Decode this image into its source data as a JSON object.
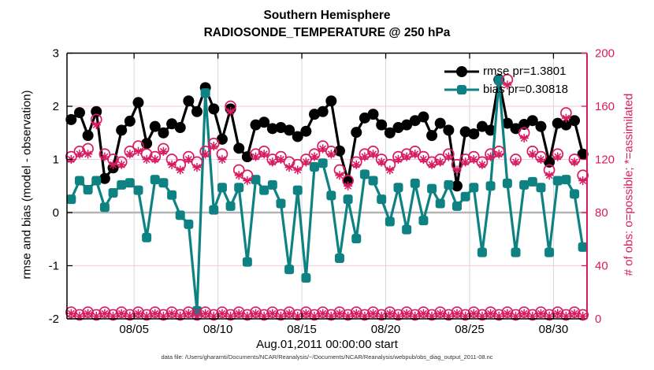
{
  "figure": {
    "title_line1": "Southern Hemisphere",
    "title_line2": "RADIOSONDE_TEMPERATURE @ 250 hPa",
    "xlabel": "Aug.01,2011 00:00:00 start",
    "ylabel_left": "rmse and bias (model - observation)",
    "ylabel_right": "# of obs: o=possible; *=assimilated",
    "caption": "data file: /Users/gharamti/Documents/NCAR/Reanalysis/~/Documents/NCAR/Reanalysis/webpub/obs_diag_output_2011-08.nc",
    "legend": [
      {
        "label": "rmse pr=1.3801",
        "color": "#000000",
        "marker": "filled-circle"
      },
      {
        "label": "bias pr=0.30818",
        "color": "#0e8282",
        "marker": "filled-square"
      }
    ]
  },
  "chart_data": {
    "type": "line",
    "title": "Southern Hemisphere — RADIOSONDE_TEMPERATURE @ 250 hPa",
    "xlabel": "Aug.01,2011 00:00:00 start",
    "ylabel_left": "rmse and bias (model - observation)",
    "ylabel_right": "# of obs: o=possible; *=assimilated",
    "x_tick_labels": [
      "08/05",
      "08/10",
      "08/15",
      "08/20",
      "08/25",
      "08/30"
    ],
    "x_tick_days": [
      4,
      9,
      14,
      19,
      24,
      29
    ],
    "x_span_days": 31,
    "n_points": 62,
    "time_sampling": "12-hourly, Aug 1 to Sep 1 2011",
    "y_left": {
      "min": -2,
      "max": 3,
      "ticks": [
        3,
        2,
        1,
        0,
        -1,
        -2
      ]
    },
    "y_right": {
      "min": 0,
      "max": 200,
      "ticks": [
        200,
        160,
        120,
        80,
        40,
        0
      ],
      "color": "#d81b60"
    },
    "grid": {
      "vertical_color": "#d8d8d8",
      "horizontal_color": "#f4d3e0",
      "zero_line_color": "#b5b5b5"
    },
    "series": [
      {
        "name": "rmse",
        "axis": "left",
        "color": "#000000",
        "marker": "filled-circle",
        "line": true,
        "values": [
          1.75,
          1.88,
          1.45,
          1.9,
          0.64,
          0.84,
          1.55,
          1.72,
          2.07,
          1.3,
          1.62,
          1.5,
          1.67,
          1.6,
          2.1,
          1.9,
          2.35,
          1.95,
          1.38,
          1.95,
          1.21,
          1.05,
          1.65,
          1.7,
          1.58,
          1.6,
          1.55,
          1.43,
          1.53,
          1.85,
          1.9,
          2.1,
          1.16,
          0.6,
          1.51,
          1.78,
          1.85,
          1.65,
          1.5,
          1.6,
          1.65,
          1.73,
          1.8,
          1.45,
          1.68,
          1.55,
          0.5,
          1.52,
          1.48,
          1.62,
          1.55,
          2.5,
          1.68,
          1.58,
          1.66,
          1.73,
          1.62,
          0.95,
          1.68,
          1.65,
          1.73,
          1.1
        ]
      },
      {
        "name": "bias",
        "axis": "left",
        "color": "#0e8282",
        "marker": "filled-square",
        "line": true,
        "values": [
          0.25,
          0.6,
          0.43,
          0.6,
          0.1,
          0.37,
          0.52,
          0.56,
          0.42,
          -0.47,
          0.62,
          0.56,
          0.33,
          -0.05,
          -0.22,
          -1.85,
          2.25,
          0.05,
          0.47,
          0.12,
          0.47,
          -0.93,
          0.62,
          0.42,
          0.52,
          0.17,
          -1.07,
          0.42,
          -1.23,
          0.86,
          0.93,
          0.32,
          -0.86,
          0.25,
          -0.49,
          0.72,
          0.6,
          0.25,
          -0.17,
          0.47,
          -0.32,
          0.55,
          -0.15,
          0.45,
          0.17,
          0.52,
          0.12,
          0.3,
          0.47,
          -0.75,
          0.5,
          2.49,
          0.55,
          -0.75,
          0.52,
          0.58,
          0.47,
          -0.75,
          0.6,
          0.62,
          0.35,
          -0.65
        ]
      },
      {
        "name": "obs possible",
        "axis": "right",
        "color": "#d81b60",
        "marker": "open-circle",
        "line": false,
        "values": [
          122,
          126,
          128,
          150,
          124,
          120,
          118,
          126,
          130,
          124,
          122,
          128,
          120,
          116,
          122,
          118,
          126,
          132,
          124,
          160,
          112,
          108,
          124,
          126,
          120,
          122,
          118,
          116,
          120,
          124,
          130,
          126,
          112,
          104,
          118,
          124,
          126,
          120,
          116,
          122,
          124,
          126,
          122,
          118,
          120,
          124,
          116,
          120,
          122,
          118,
          124,
          126,
          180,
          120,
          140,
          126,
          122,
          112,
          124,
          155,
          120,
          108
        ]
      },
      {
        "name": "obs assimilated",
        "axis": "right",
        "color": "#d81b60",
        "marker": "asterisk",
        "line": false,
        "values": [
          120,
          124,
          124,
          146,
          122,
          116,
          116,
          124,
          126,
          120,
          120,
          126,
          116,
          112,
          120,
          114,
          124,
          130,
          120,
          156,
          108,
          104,
          122,
          124,
          118,
          120,
          114,
          112,
          118,
          122,
          128,
          124,
          108,
          100,
          116,
          122,
          124,
          118,
          112,
          120,
          122,
          124,
          120,
          116,
          118,
          122,
          112,
          118,
          120,
          116,
          122,
          124,
          176,
          118,
          136,
          124,
          120,
          108,
          122,
          151,
          118,
          104
        ]
      },
      {
        "name": "obs possible (bottom row)",
        "axis": "right",
        "color": "#d81b60",
        "marker": "open-circle",
        "line": false,
        "values": [
          5,
          3,
          5,
          3,
          5,
          3,
          5,
          3,
          5,
          3,
          5,
          3,
          5,
          3,
          5,
          3,
          5,
          3,
          5,
          3,
          5,
          3,
          5,
          3,
          5,
          3,
          5,
          3,
          5,
          3,
          5,
          3,
          5,
          3,
          5,
          3,
          5,
          3,
          5,
          3,
          5,
          3,
          5,
          3,
          5,
          3,
          5,
          3,
          5,
          3,
          5,
          3,
          5,
          3,
          5,
          3,
          5,
          3,
          5,
          3,
          5,
          3
        ]
      },
      {
        "name": "obs assimilated (bottom row)",
        "axis": "right",
        "color": "#d81b60",
        "marker": "asterisk",
        "line": false,
        "values": [
          4,
          2,
          4,
          2,
          4,
          2,
          4,
          2,
          4,
          2,
          4,
          2,
          4,
          2,
          4,
          2,
          4,
          2,
          4,
          2,
          4,
          2,
          4,
          2,
          4,
          2,
          4,
          2,
          4,
          2,
          4,
          2,
          4,
          2,
          4,
          2,
          4,
          2,
          4,
          2,
          4,
          2,
          4,
          2,
          4,
          2,
          4,
          2,
          4,
          2,
          4,
          2,
          4,
          2,
          4,
          2,
          4,
          2,
          4,
          2,
          4,
          2
        ]
      }
    ]
  }
}
